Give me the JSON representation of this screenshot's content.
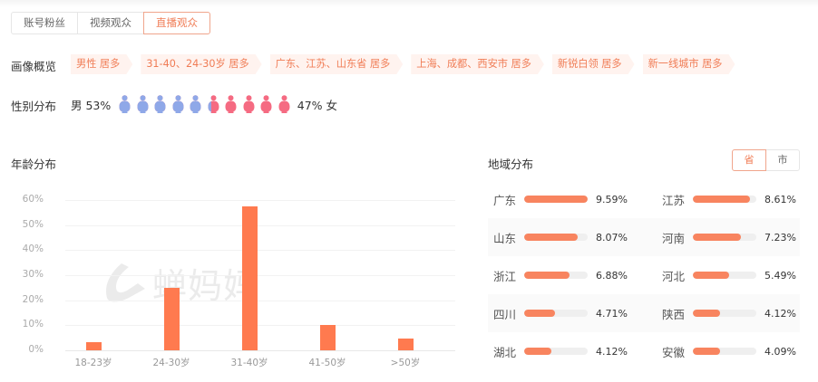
{
  "tabs": [
    {
      "label": "账号粉丝",
      "active": false
    },
    {
      "label": "视频观众",
      "active": false
    },
    {
      "label": "直播观众",
      "active": true
    }
  ],
  "portrait": {
    "label": "画像概览",
    "tags": [
      "男性 居多",
      "31-40、24-30岁 居多",
      "广东、江苏、山东省 居多",
      "上海、成都、西安市 居多",
      "新锐白领 居多",
      "新一线城市 居多"
    ]
  },
  "gender": {
    "label": "性别分布",
    "male_text": "男 53%",
    "female_text": "47% 女",
    "male_pct": 53,
    "female_pct": 47,
    "figure_count": 10,
    "male_color": "#8fa8e8",
    "female_color": "#f56b82"
  },
  "age": {
    "title": "年龄分布",
    "watermark": "蝉妈妈"
  },
  "region": {
    "title": "地域分布",
    "toggle": [
      {
        "label": "省",
        "active": true
      },
      {
        "label": "市",
        "active": false
      }
    ],
    "max_value": 9.59,
    "rows": [
      [
        {
          "name": "广东",
          "value": 9.59,
          "label": "9.59%"
        },
        {
          "name": "江苏",
          "value": 8.61,
          "label": "8.61%"
        }
      ],
      [
        {
          "name": "山东",
          "value": 8.07,
          "label": "8.07%"
        },
        {
          "name": "河南",
          "value": 7.23,
          "label": "7.23%"
        }
      ],
      [
        {
          "name": "浙江",
          "value": 6.88,
          "label": "6.88%"
        },
        {
          "name": "河北",
          "value": 5.49,
          "label": "5.49%"
        }
      ],
      [
        {
          "name": "四川",
          "value": 4.71,
          "label": "4.71%"
        },
        {
          "name": "陕西",
          "value": 4.12,
          "label": "4.12%"
        }
      ],
      [
        {
          "name": "湖北",
          "value": 4.12,
          "label": "4.12%"
        },
        {
          "name": "安徽",
          "value": 4.09,
          "label": "4.09%"
        }
      ]
    ]
  },
  "chart_data": {
    "type": "bar",
    "title": "年龄分布",
    "categories": [
      "18-23岁",
      "24-30岁",
      "31-40岁",
      "41-50岁",
      ">50岁"
    ],
    "values": [
      3.3,
      24.9,
      57.4,
      10.1,
      4.7
    ],
    "xlabel": "",
    "ylabel": "",
    "ylim": [
      0,
      60
    ],
    "yticks": [
      "0%",
      "10%",
      "20%",
      "30%",
      "40%",
      "50%",
      "60%"
    ],
    "grid": true,
    "color": "#ff7a4f"
  }
}
